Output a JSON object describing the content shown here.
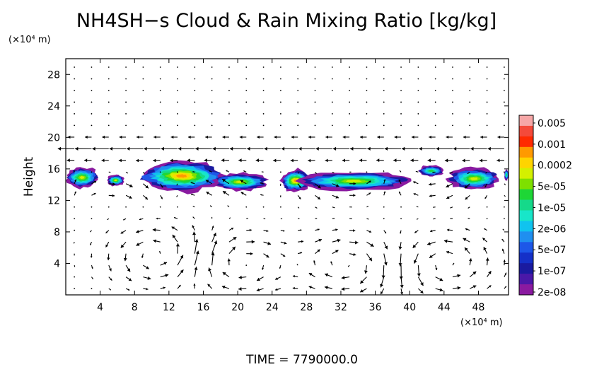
{
  "chart_data": {
    "type": "heatmap",
    "title": "NH4SH−s Cloud & Rain Mixing Ratio [kg/kg]",
    "xunit": "(×10⁴ m)",
    "yunit": "(×10⁴ m)",
    "ylabel": "Height",
    "footer": "TIME  =  7790000.0",
    "x_range": [
      0,
      51.5
    ],
    "y_range": [
      0,
      30
    ],
    "x_ticks": [
      4,
      8,
      12,
      16,
      20,
      24,
      28,
      32,
      36,
      40,
      44,
      48
    ],
    "y_ticks": [
      4,
      8,
      12,
      16,
      20,
      24,
      28
    ],
    "colorbar": {
      "labels": [
        "0.005",
        "0.001",
        "0.0002",
        "5e-05",
        "1e-05",
        "2e-06",
        "5e-07",
        "1e-07",
        "2e-08"
      ],
      "colors": [
        "#f6a7a7",
        "#f44a3a",
        "#ff2a00",
        "#ff9a00",
        "#ffd400",
        "#d4f000",
        "#7ee000",
        "#1ed636",
        "#15d98a",
        "#18e6c9",
        "#10c3ef",
        "#1f8ff0",
        "#1d57e8",
        "#1530c8",
        "#1a1aa0",
        "#4a18a8",
        "#8a1aa0"
      ]
    },
    "cloud_patches": [
      {
        "x": [
          0,
          3.8
        ],
        "y": [
          13.5,
          16.3
        ],
        "peak": "5e-05"
      },
      {
        "x": [
          4.8,
          6.8
        ],
        "y": [
          13.8,
          15.3
        ],
        "peak": "5e-05"
      },
      {
        "x": [
          8.5,
          18.5
        ],
        "y": [
          13.0,
          17.2
        ],
        "peak": "0.0002"
      },
      {
        "x": [
          17.0,
          23.5
        ],
        "y": [
          13.2,
          15.5
        ],
        "peak": "5e-05"
      },
      {
        "x": [
          25.0,
          28.5
        ],
        "y": [
          13.0,
          16.0
        ],
        "peak": "0.0002"
      },
      {
        "x": [
          27.0,
          40.0
        ],
        "y": [
          13.2,
          15.7
        ],
        "peak": "5e-05"
      },
      {
        "x": [
          41.0,
          44.0
        ],
        "y": [
          15.0,
          16.5
        ],
        "peak": "1e-05"
      },
      {
        "x": [
          44.5,
          50.5
        ],
        "y": [
          13.3,
          16.2
        ],
        "peak": "5e-05"
      },
      {
        "x": [
          51.0,
          51.5
        ],
        "y": [
          14.5,
          16.0
        ],
        "peak": "1e-05"
      }
    ],
    "wind_vectors": "velocity arrows on regular grid; westward jet near 17-20, overturning cells centered near x=20 and x=33 at low levels"
  }
}
